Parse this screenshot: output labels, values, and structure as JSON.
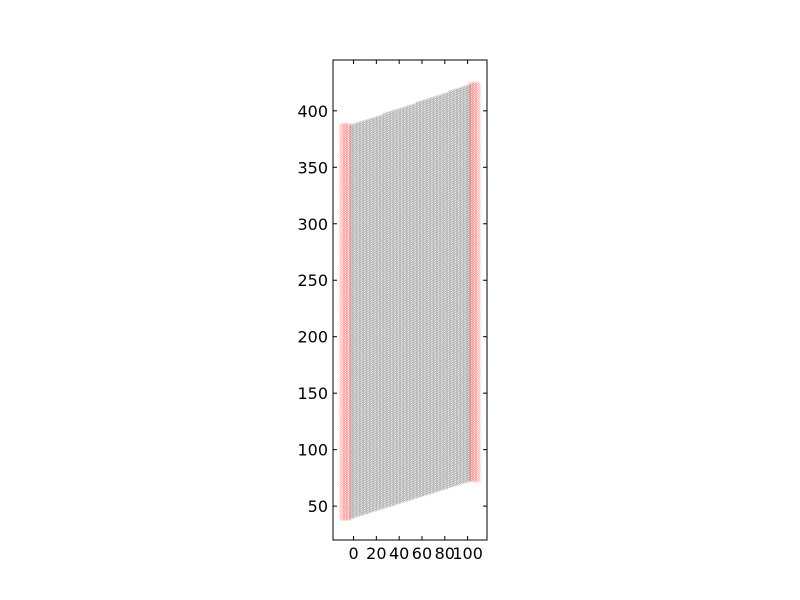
{
  "chart_data": {
    "type": "scatter",
    "title": "",
    "xlabel": "",
    "ylabel": "",
    "xlim": [
      -18,
      117
    ],
    "ylim": [
      20,
      445
    ],
    "x_ticks": [
      "0",
      "20",
      "40",
      "60",
      "80",
      "100"
    ],
    "y_ticks": [
      "50",
      "100",
      "150",
      "200",
      "250",
      "300",
      "350",
      "400"
    ],
    "grid": false,
    "legend": "none",
    "marker_style": "open-circle",
    "series": [
      {
        "role": "interior-lattice",
        "color": "#909090",
        "x_range": [
          -3,
          104
        ],
        "bottom_edge": [
          [
            -3,
            39
          ],
          [
            104,
            73
          ]
        ],
        "top_edge": [
          [
            -3,
            387
          ],
          [
            104,
            424
          ]
        ]
      },
      {
        "role": "left-boundary",
        "color": "#ff5a5a",
        "x_range": [
          -12,
          -2
        ],
        "y_range": [
          38,
          389
        ]
      },
      {
        "role": "right-boundary",
        "color": "#ff5a5a",
        "x_range": [
          101,
          111
        ],
        "y_range": [
          72,
          425
        ]
      }
    ]
  }
}
